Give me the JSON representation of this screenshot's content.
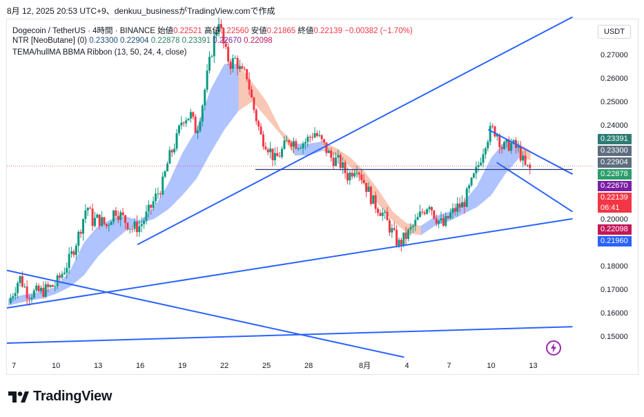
{
  "caption": "8月 12, 2025 20:53 UTC+9、denkuu_businessがTradingView.comで作成",
  "legend": {
    "symbol": "Dogecoin / TetherUS · 4時間 · BINANCE",
    "open_label": "始値",
    "open": "0.22521",
    "high_label": "高値",
    "high": "0.22560",
    "low_label": "安値",
    "low": "0.21865",
    "close_label": "終値",
    "close": "0.22139",
    "change": "−0.00382 (−1.70%)",
    "ntr_name": "NTR [NeoButane] (0)",
    "ntr_v1": "0.23300",
    "ntr_v2": "0.22904",
    "ntr_v3": "0.22878",
    "ntr_v4": "0.23391",
    "ntr_v5": "0.22670",
    "ntr_v6": "0.22098",
    "ribbon_name": "TEMA/hullMA BBMA Ribbon (13, 50, 24, 4, close)"
  },
  "currency": "USDT",
  "countdown": "06:41",
  "brand": "TradingView",
  "price_tags": [
    {
      "value": "0.23391",
      "color": "#2e7d74"
    },
    {
      "value": "0.23300",
      "color": "#5d6d7e"
    },
    {
      "value": "0.22904",
      "color": "#5d6d7e"
    },
    {
      "value": "0.22878",
      "color": "#2a9d6a"
    },
    {
      "value": "0.22670",
      "color": "#7b1fa2"
    },
    {
      "value": "0.22139",
      "color": "#f23645"
    },
    {
      "value": "0.22098",
      "color": "#c2185b"
    },
    {
      "value": "0.21960",
      "color": "#2962ff"
    }
  ],
  "chart_data": {
    "type": "candlestick",
    "y_range": [
      0.142,
      0.285
    ],
    "y_ticks": [
      "0.27000",
      "0.26000",
      "0.25000",
      "0.24000",
      "0.23000",
      "0.22000",
      "0.21000",
      "0.20000",
      "0.19000",
      "0.18000",
      "0.17000",
      "0.16000",
      "0.15000"
    ],
    "y_tick_values": [
      0.27,
      0.26,
      0.25,
      0.24,
      0.23,
      0.22,
      0.21,
      0.2,
      0.19,
      0.18,
      0.17,
      0.16,
      0.15
    ],
    "x_ticks": [
      "7",
      "10",
      "13",
      "16",
      "19",
      "22",
      "25",
      "28",
      "8月",
      "4",
      "7",
      "10",
      "13"
    ],
    "x_tick_days": [
      7,
      10,
      13,
      16,
      19,
      22,
      25,
      28,
      32,
      35,
      38,
      41,
      44
    ],
    "x_range_days": [
      6.5,
      48.4
    ],
    "last_price": 0.22139,
    "prev_close_line": 0.2224,
    "horizontal_level": 0.221,
    "colors": {
      "up": "#089981",
      "down": "#f23645",
      "trendline": "#2962ff"
    },
    "close_path": [
      [
        6.6,
        0.164
      ],
      [
        7.4,
        0.175
      ],
      [
        8.0,
        0.168
      ],
      [
        9.0,
        0.169
      ],
      [
        10.0,
        0.172
      ],
      [
        11.0,
        0.183
      ],
      [
        11.6,
        0.193
      ],
      [
        12.2,
        0.206
      ],
      [
        12.6,
        0.199
      ],
      [
        13.0,
        0.2
      ],
      [
        13.6,
        0.197
      ],
      [
        14.2,
        0.204
      ],
      [
        14.8,
        0.2
      ],
      [
        15.4,
        0.196
      ],
      [
        16.0,
        0.197
      ],
      [
        16.6,
        0.203
      ],
      [
        17.0,
        0.208
      ],
      [
        17.6,
        0.215
      ],
      [
        18.0,
        0.225
      ],
      [
        18.6,
        0.234
      ],
      [
        19.0,
        0.243
      ],
      [
        19.6,
        0.244
      ],
      [
        20.0,
        0.237
      ],
      [
        20.4,
        0.248
      ],
      [
        20.8,
        0.262
      ],
      [
        21.2,
        0.275
      ],
      [
        21.6,
        0.285
      ],
      [
        22.0,
        0.272
      ],
      [
        22.4,
        0.266
      ],
      [
        22.8,
        0.268
      ],
      [
        23.2,
        0.262
      ],
      [
        23.6,
        0.261
      ],
      [
        24.0,
        0.249
      ],
      [
        24.6,
        0.235
      ],
      [
        25.0,
        0.232
      ],
      [
        25.6,
        0.225
      ],
      [
        26.0,
        0.228
      ],
      [
        26.6,
        0.234
      ],
      [
        27.2,
        0.232
      ],
      [
        27.8,
        0.233
      ],
      [
        28.4,
        0.237
      ],
      [
        29.0,
        0.232
      ],
      [
        29.6,
        0.226
      ],
      [
        30.2,
        0.224
      ],
      [
        30.8,
        0.218
      ],
      [
        31.4,
        0.223
      ],
      [
        32.0,
        0.215
      ],
      [
        32.6,
        0.207
      ],
      [
        33.2,
        0.203
      ],
      [
        33.8,
        0.196
      ],
      [
        34.4,
        0.189
      ],
      [
        35.0,
        0.193
      ],
      [
        35.6,
        0.198
      ],
      [
        36.0,
        0.202
      ],
      [
        36.6,
        0.207
      ],
      [
        37.0,
        0.201
      ],
      [
        37.6,
        0.197
      ],
      [
        38.0,
        0.201
      ],
      [
        38.6,
        0.205
      ],
      [
        39.0,
        0.206
      ],
      [
        39.6,
        0.215
      ],
      [
        40.0,
        0.221
      ],
      [
        40.6,
        0.233
      ],
      [
        41.0,
        0.238
      ],
      [
        41.4,
        0.237
      ],
      [
        41.8,
        0.23
      ],
      [
        42.4,
        0.232
      ],
      [
        43.0,
        0.229
      ],
      [
        43.4,
        0.222
      ],
      [
        43.8,
        0.221
      ]
    ],
    "trendlines": [
      {
        "name": "upper-rising",
        "from": [
          15.8,
          0.189
        ],
        "to": [
          46.8,
          0.286
        ]
      },
      {
        "name": "mid-rising",
        "from": [
          6.5,
          0.162
        ],
        "to": [
          46.8,
          0.2
        ]
      },
      {
        "name": "low-rising",
        "from": [
          6.5,
          0.147
        ],
        "to": [
          46.8,
          0.154
        ]
      },
      {
        "name": "falling",
        "from": [
          6.5,
          0.178
        ],
        "to": [
          34.8,
          0.141
        ]
      },
      {
        "name": "channel-top",
        "from": [
          40.8,
          0.238
        ],
        "to": [
          46.8,
          0.219
        ]
      },
      {
        "name": "channel-bottom",
        "from": [
          41.4,
          0.224
        ],
        "to": [
          46.8,
          0.203
        ]
      },
      {
        "name": "horizontal",
        "from": [
          24.2,
          0.221
        ],
        "to": [
          46.8,
          0.221
        ]
      }
    ],
    "ribbon": [
      [
        6.6,
        0.166,
        0.163
      ],
      [
        8.0,
        0.168,
        0.165
      ],
      [
        9.0,
        0.169,
        0.166
      ],
      [
        10.0,
        0.171,
        0.168
      ],
      [
        11.0,
        0.178,
        0.171
      ],
      [
        12.0,
        0.19,
        0.176
      ],
      [
        13.0,
        0.197,
        0.184
      ],
      [
        14.0,
        0.2,
        0.19
      ],
      [
        15.0,
        0.201,
        0.195
      ],
      [
        16.0,
        0.199,
        0.198
      ],
      [
        17.0,
        0.205,
        0.2
      ],
      [
        18.0,
        0.215,
        0.204
      ],
      [
        19.0,
        0.228,
        0.21
      ],
      [
        20.0,
        0.238,
        0.217
      ],
      [
        21.0,
        0.255,
        0.228
      ],
      [
        22.0,
        0.266,
        0.238
      ],
      [
        23.0,
        0.266,
        0.246
      ],
      [
        24.0,
        0.258,
        0.25
      ],
      [
        25.0,
        0.25,
        0.243
      ],
      [
        26.0,
        0.238,
        0.236
      ],
      [
        27.0,
        0.232,
        0.227
      ],
      [
        28.0,
        0.232,
        0.227
      ],
      [
        29.0,
        0.233,
        0.229
      ],
      [
        30.0,
        0.23,
        0.227
      ],
      [
        31.0,
        0.226,
        0.222
      ],
      [
        32.0,
        0.22,
        0.214
      ],
      [
        33.0,
        0.212,
        0.206
      ],
      [
        34.0,
        0.203,
        0.199
      ],
      [
        35.0,
        0.198,
        0.194
      ],
      [
        36.0,
        0.197,
        0.193
      ],
      [
        37.0,
        0.201,
        0.197
      ],
      [
        38.0,
        0.203,
        0.199
      ],
      [
        39.0,
        0.207,
        0.202
      ],
      [
        40.0,
        0.214,
        0.205
      ],
      [
        41.0,
        0.226,
        0.21
      ],
      [
        42.0,
        0.233,
        0.219
      ],
      [
        43.0,
        0.232,
        0.226
      ],
      [
        43.8,
        0.229,
        0.225
      ]
    ]
  }
}
